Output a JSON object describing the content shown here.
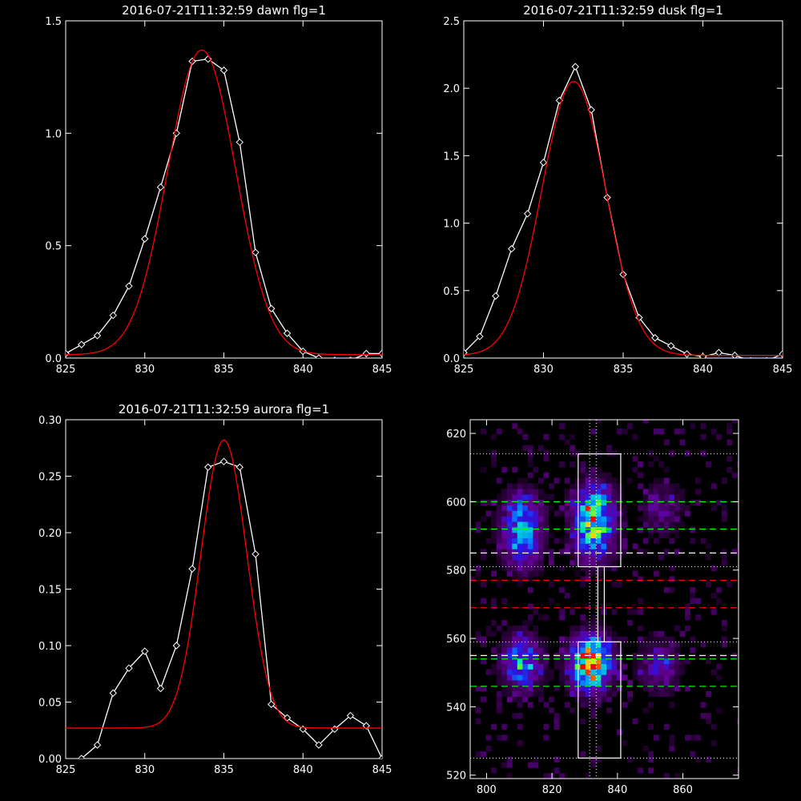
{
  "colors": {
    "background": "#000000",
    "axes": "#ffffff",
    "observed": "#ffffff",
    "fit": "#ff0000",
    "dash_green": "#00ff00",
    "dash_red": "#ff0000",
    "dash_white": "#ffffff"
  },
  "chart_data": [
    {
      "type": "line",
      "title": "2016-07-21T11:32:59 dawn flg=1",
      "xlabel": "",
      "ylabel": "",
      "xlim": [
        825,
        845
      ],
      "ylim": [
        0,
        1.5
      ],
      "xticks": [
        825,
        830,
        835,
        840,
        845
      ],
      "yticks": [
        0.0,
        0.5,
        1.0,
        1.5
      ],
      "ytick_labels": [
        "0.0",
        "0.5",
        "1.0",
        "1.5"
      ],
      "series": [
        {
          "style": "line-diamond",
          "color": "#ffffff",
          "x": [
            825,
            826,
            827,
            828,
            829,
            830,
            831,
            832,
            833,
            834,
            835,
            836,
            837,
            838,
            839,
            840,
            841,
            842,
            843,
            844,
            845
          ],
          "y": [
            0.02,
            0.06,
            0.1,
            0.19,
            0.32,
            0.53,
            0.76,
            1.0,
            1.32,
            1.33,
            1.28,
            0.96,
            0.47,
            0.22,
            0.11,
            0.03,
            0.0,
            -0.01,
            -0.01,
            0.02,
            0.02
          ]
        },
        {
          "style": "line",
          "color": "#ff0000",
          "fit": {
            "amplitude": 1.355,
            "center": 833.6,
            "sigma": 2.15,
            "offset": 0.015
          }
        }
      ]
    },
    {
      "type": "line",
      "title": "2016-07-21T11:32:59 dusk flg=1",
      "xlabel": "",
      "ylabel": "",
      "xlim": [
        825,
        845
      ],
      "ylim": [
        0,
        2.5
      ],
      "xticks": [
        825,
        830,
        835,
        840,
        845
      ],
      "yticks": [
        0.0,
        0.5,
        1.0,
        1.5,
        2.0,
        2.5
      ],
      "ytick_labels": [
        "0.0",
        "0.5",
        "1.0",
        "1.5",
        "2.0",
        "2.5"
      ],
      "series": [
        {
          "style": "line-diamond",
          "color": "#ffffff",
          "x": [
            825,
            826,
            827,
            828,
            829,
            830,
            831,
            832,
            833,
            834,
            835,
            836,
            837,
            838,
            839,
            840,
            841,
            842,
            843,
            844,
            845
          ],
          "y": [
            0.04,
            0.16,
            0.46,
            0.81,
            1.07,
            1.45,
            1.91,
            2.16,
            1.84,
            1.19,
            0.62,
            0.3,
            0.15,
            0.09,
            0.03,
            0.01,
            0.04,
            0.02,
            -0.02,
            -0.02,
            0.03
          ]
        },
        {
          "style": "line",
          "color": "#ff0000",
          "fit": {
            "amplitude": 2.03,
            "center": 831.9,
            "sigma": 2.0,
            "offset": 0.02
          }
        }
      ]
    },
    {
      "type": "line",
      "title": "2016-07-21T11:32:59 aurora flg=1",
      "xlabel": "",
      "ylabel": "",
      "xlim": [
        825,
        845
      ],
      "ylim": [
        0,
        0.3
      ],
      "xticks": [
        825,
        830,
        835,
        840,
        845
      ],
      "yticks": [
        0.0,
        0.05,
        0.1,
        0.15,
        0.2,
        0.25,
        0.3
      ],
      "ytick_labels": [
        "0.00",
        "0.05",
        "0.10",
        "0.15",
        "0.20",
        "0.25",
        "0.30"
      ],
      "series": [
        {
          "style": "line-diamond",
          "color": "#ffffff",
          "x": [
            826,
            827,
            828,
            829,
            830,
            831,
            832,
            833,
            834,
            835,
            836,
            837,
            838,
            839,
            840,
            841,
            842,
            843,
            844,
            845
          ],
          "y": [
            0.0,
            0.012,
            0.058,
            0.08,
            0.095,
            0.062,
            0.1,
            0.168,
            0.258,
            0.263,
            0.258,
            0.181,
            0.048,
            0.036,
            0.026,
            0.012,
            0.026,
            0.038,
            0.029,
            0.0
          ]
        },
        {
          "style": "line",
          "color": "#ff0000",
          "fit": {
            "amplitude": 0.255,
            "center": 835.0,
            "sigma": 1.45,
            "offset": 0.027
          }
        }
      ]
    },
    {
      "type": "heatmap",
      "title": "",
      "xlabel": "",
      "ylabel": "",
      "xlim": [
        795,
        877
      ],
      "ylim": [
        519,
        624
      ],
      "xticks": [
        800,
        820,
        840,
        860
      ],
      "yticks": [
        520,
        540,
        560,
        580,
        600,
        620
      ],
      "colormap": "rainbow-on-black",
      "blobs": [
        {
          "x": 810,
          "y": 552,
          "intensity": 0.55
        },
        {
          "x": 810,
          "y": 595,
          "intensity": 0.4
        },
        {
          "x": 810,
          "y": 586,
          "intensity": 0.35
        },
        {
          "x": 831,
          "y": 552,
          "intensity": 1.0
        },
        {
          "x": 832,
          "y": 597,
          "intensity": 0.6
        },
        {
          "x": 832,
          "y": 588,
          "intensity": 0.45
        },
        {
          "x": 852,
          "y": 551,
          "intensity": 0.3
        },
        {
          "x": 853,
          "y": 597,
          "intensity": 0.22
        }
      ],
      "rectangles": [
        {
          "x0": 828,
          "x1": 841,
          "y0": 581,
          "y1": 614
        },
        {
          "x0": 828,
          "x1": 841,
          "y0": 525,
          "y1": 559
        }
      ],
      "connector": {
        "x0": 834,
        "x1": 835,
        "y0": 559,
        "y1": 581
      },
      "dotted_h": [
        614,
        581,
        559,
        525
      ],
      "dotted_v": [
        831.5,
        833.5
      ],
      "dashed_lines": [
        {
          "y": 600,
          "color": "#00ff00"
        },
        {
          "y": 592,
          "color": "#00ff00"
        },
        {
          "y": 585,
          "color": "#ffffff"
        },
        {
          "y": 577,
          "color": "#ff0000"
        },
        {
          "y": 569,
          "color": "#ff0000"
        },
        {
          "y": 555,
          "color": "#ffffff"
        },
        {
          "y": 554,
          "color": "#00ff00"
        },
        {
          "y": 546,
          "color": "#00ff00"
        }
      ]
    }
  ]
}
